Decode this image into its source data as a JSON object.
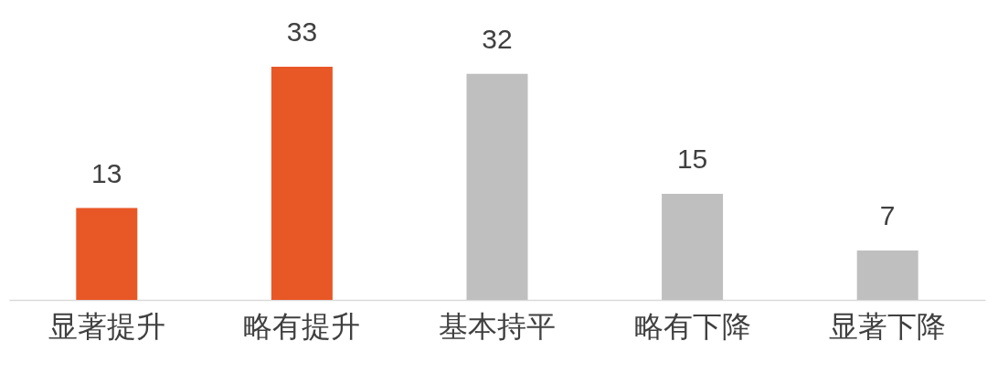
{
  "chart_data": {
    "type": "bar",
    "categories": [
      "显著提升",
      "略有提升",
      "基本持平",
      "略有下降",
      "显著下降"
    ],
    "values": [
      13,
      33,
      32,
      15,
      7
    ],
    "colors": [
      "#e85726",
      "#e85726",
      "#bfbfbf",
      "#bfbfbf",
      "#bfbfbf"
    ],
    "data_labels": true
  }
}
